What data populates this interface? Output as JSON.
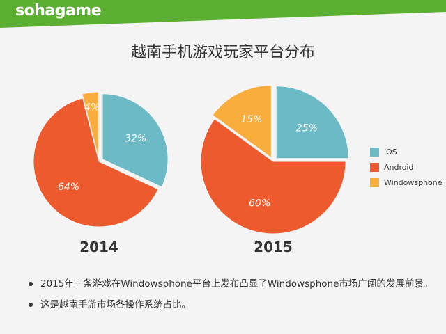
{
  "brand": {
    "logo_text": "sohagame"
  },
  "colors": {
    "header_green": "#5cb031",
    "ios": "#6bbac5",
    "android": "#ec5a2d",
    "windowsphone": "#f8ad3c"
  },
  "title": "越南手机游戏玩家平台分布",
  "chart_data": [
    {
      "type": "pie",
      "title": "2014",
      "labels": [
        "iOS",
        "Android",
        "Windowsphone"
      ],
      "values": [
        32,
        64,
        4
      ],
      "value_labels": [
        "32%",
        "64%",
        "4%"
      ],
      "colors": [
        "#6bbac5",
        "#ec5a2d",
        "#f8ad3c"
      ],
      "exploded": [
        true,
        false,
        true
      ]
    },
    {
      "type": "pie",
      "title": "2015",
      "labels": [
        "iOS",
        "Android",
        "Windowsphone"
      ],
      "values": [
        25,
        60,
        15
      ],
      "value_labels": [
        "25%",
        "60%",
        "15%"
      ],
      "colors": [
        "#6bbac5",
        "#ec5a2d",
        "#f8ad3c"
      ],
      "exploded": [
        true,
        false,
        true
      ]
    }
  ],
  "legend": {
    "items": [
      {
        "label": "iOS",
        "color": "#6bbac5"
      },
      {
        "label": "Android",
        "color": "#ec5a2d"
      },
      {
        "label": "Windowsphone",
        "color": "#f8ad3c"
      }
    ]
  },
  "bullets": [
    "2015年一条游戏在Windowsphone平台上发布凸显了Windowsphone市场广阔的发展前景。",
    "这是越南手游市场各操作系统占比。"
  ]
}
